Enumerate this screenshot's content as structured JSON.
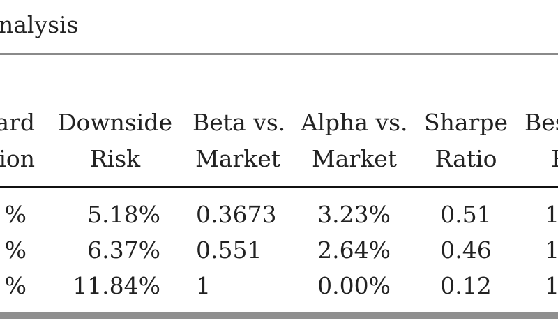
{
  "table": {
    "title": "nalysis",
    "headers": [
      {
        "line1": "ard",
        "line2": "ion"
      },
      {
        "line1": "Downside",
        "line2": "Risk"
      },
      {
        "line1": "Beta vs.",
        "line2": "Market"
      },
      {
        "line1": "Alpha vs.",
        "line2": "Market"
      },
      {
        "line1": "Sharpe",
        "line2": "Ratio"
      },
      {
        "line1": "Bes",
        "line2": "R"
      }
    ],
    "rows": [
      [
        "%",
        "5.18%",
        "0.3673",
        "3.23%",
        "0.51",
        "1"
      ],
      [
        "%",
        "6.37%",
        "0.551",
        "2.64%",
        "0.46",
        "1"
      ],
      [
        "%",
        "11.84%",
        "1",
        "0.00%",
        "0.12",
        "1"
      ]
    ]
  }
}
